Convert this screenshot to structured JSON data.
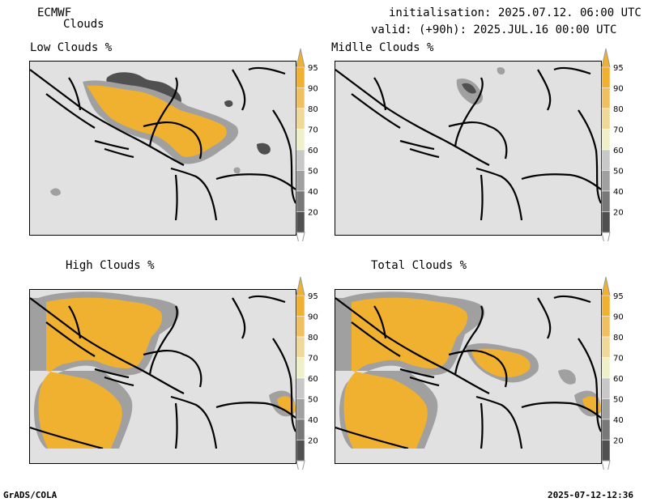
{
  "header": {
    "model": "ECMWF",
    "product": "Clouds",
    "init_line": "initialisation: 2025.07.12. 06:00 UTC",
    "valid_line": "valid: (+90h): 2025.JUL.16 00:00 UTC"
  },
  "panels": [
    {
      "title": "Low Clouds %"
    },
    {
      "title": "Midlle Clouds %"
    },
    {
      "title": "High Clouds %"
    },
    {
      "title": "Total Clouds %"
    }
  ],
  "colorbar": {
    "levels": [
      "95",
      "90",
      "80",
      "70",
      "60",
      "50",
      "40",
      "20"
    ],
    "colors": [
      "#f0b030",
      "#f0c060",
      "#f0d898",
      "#f0f0c8",
      "#c8c8c8",
      "#a0a0a0",
      "#787878",
      "#505050"
    ]
  },
  "footer": {
    "left": "GrADS/COLA",
    "right": "2025-07-12-12:36"
  }
}
